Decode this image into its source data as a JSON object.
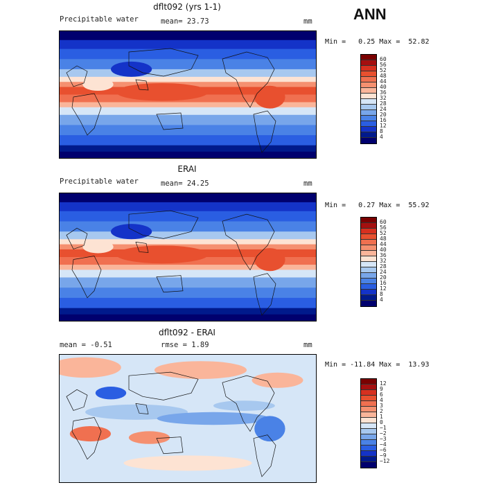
{
  "season": "ANN",
  "panels": [
    {
      "title": "dflt092 (yrs 1-1)",
      "left_label": "Precipitable water",
      "mid_label": "mean=  23.73",
      "units": "mm",
      "minmax": "Min =   0.25 Max =  52.82",
      "field": "mean",
      "colorbar": {
        "labels": [
          "60",
          "56",
          "52",
          "48",
          "44",
          "40",
          "36",
          "32",
          "28",
          "24",
          "20",
          "16",
          "12",
          "8",
          "4"
        ],
        "colors": [
          "#7a0000",
          "#a50f0f",
          "#d7301f",
          "#e8502f",
          "#f07050",
          "#f59070",
          "#fab59a",
          "#fde3d3",
          "#d6e6f7",
          "#a7c8ef",
          "#78a6ea",
          "#4a82e6",
          "#2a5ee2",
          "#1433c8",
          "#001a8c",
          "#00006e"
        ]
      }
    },
    {
      "title": "ERAI",
      "left_label": "Precipitable water",
      "mid_label": "mean=  24.25",
      "units": "mm",
      "minmax": "Min =   0.27 Max =  55.92",
      "field": "mean",
      "colorbar": {
        "labels": [
          "60",
          "56",
          "52",
          "48",
          "44",
          "40",
          "36",
          "32",
          "28",
          "24",
          "20",
          "16",
          "12",
          "8",
          "4"
        ],
        "colors": [
          "#7a0000",
          "#a50f0f",
          "#d7301f",
          "#e8502f",
          "#f07050",
          "#f59070",
          "#fab59a",
          "#fde3d3",
          "#d6e6f7",
          "#a7c8ef",
          "#78a6ea",
          "#4a82e6",
          "#2a5ee2",
          "#1433c8",
          "#001a8c",
          "#00006e"
        ]
      }
    },
    {
      "title": "dflt092 - ERAI",
      "left_label": "mean =   -0.51",
      "mid_label": "rmse =    1.89",
      "units": "mm",
      "minmax": "Min = -11.84 Max =  13.93",
      "field": "diff",
      "colorbar": {
        "labels": [
          "12",
          "9",
          "6",
          "4",
          "3",
          "2",
          "1",
          "0",
          "−1",
          "−2",
          "−3",
          "−4",
          "−6",
          "−9",
          "−12"
        ],
        "colors": [
          "#7a0000",
          "#a50f0f",
          "#d7301f",
          "#e8502f",
          "#f07050",
          "#f59070",
          "#fab59a",
          "#fde3d3",
          "#d6e6f7",
          "#a7c8ef",
          "#78a6ea",
          "#4a82e6",
          "#2a5ee2",
          "#1433c8",
          "#001a8c",
          "#00006e"
        ]
      }
    }
  ]
}
